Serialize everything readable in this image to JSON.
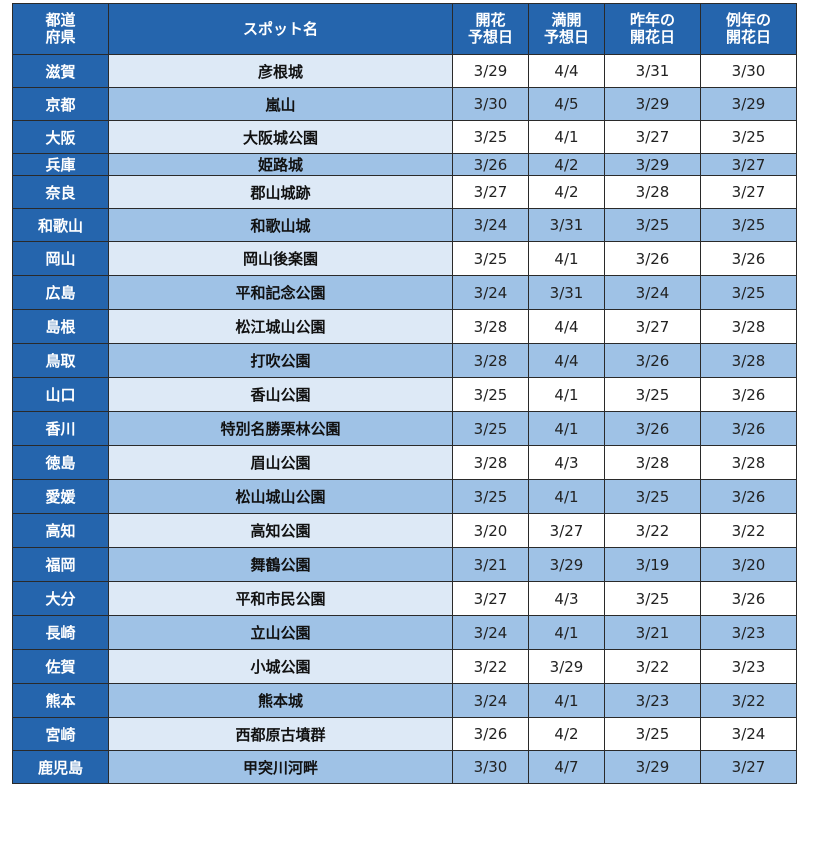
{
  "table": {
    "headers": {
      "prefecture": [
        "都道",
        "府県"
      ],
      "spot": "スポット名",
      "bloom_forecast": [
        "開花",
        "予想日"
      ],
      "full_bloom_forecast": [
        "満開",
        "予想日"
      ],
      "last_year_bloom": [
        "昨年の",
        "開花日"
      ],
      "normal_bloom": [
        "例年の",
        "開花日"
      ]
    },
    "rows": [
      {
        "pref": "滋賀",
        "spot": "彦根城",
        "bloom": "3/29",
        "full": "4/4",
        "last": "3/31",
        "normal": "3/30"
      },
      {
        "pref": "京都",
        "spot": "嵐山",
        "bloom": "3/30",
        "full": "4/5",
        "last": "3/29",
        "normal": "3/29"
      },
      {
        "pref": "大阪",
        "spot": "大阪城公園",
        "bloom": "3/25",
        "full": "4/1",
        "last": "3/27",
        "normal": "3/25"
      },
      {
        "pref": "兵庫",
        "spot": "姫路城",
        "bloom": "3/26",
        "full": "4/2",
        "last": "3/29",
        "normal": "3/27"
      },
      {
        "pref": "奈良",
        "spot": "郡山城跡",
        "bloom": "3/27",
        "full": "4/2",
        "last": "3/28",
        "normal": "3/27"
      },
      {
        "pref": "和歌山",
        "spot": "和歌山城",
        "bloom": "3/24",
        "full": "3/31",
        "last": "3/25",
        "normal": "3/25"
      },
      {
        "pref": "岡山",
        "spot": "岡山後楽園",
        "bloom": "3/25",
        "full": "4/1",
        "last": "3/26",
        "normal": "3/26"
      },
      {
        "pref": "広島",
        "spot": "平和記念公園",
        "bloom": "3/24",
        "full": "3/31",
        "last": "3/24",
        "normal": "3/25"
      },
      {
        "pref": "島根",
        "spot": "松江城山公園",
        "bloom": "3/28",
        "full": "4/4",
        "last": "3/27",
        "normal": "3/28"
      },
      {
        "pref": "鳥取",
        "spot": "打吹公園",
        "bloom": "3/28",
        "full": "4/4",
        "last": "3/26",
        "normal": "3/28"
      },
      {
        "pref": "山口",
        "spot": "香山公園",
        "bloom": "3/25",
        "full": "4/1",
        "last": "3/25",
        "normal": "3/26"
      },
      {
        "pref": "香川",
        "spot": "特別名勝栗林公園",
        "bloom": "3/25",
        "full": "4/1",
        "last": "3/26",
        "normal": "3/26"
      },
      {
        "pref": "徳島",
        "spot": "眉山公園",
        "bloom": "3/28",
        "full": "4/3",
        "last": "3/28",
        "normal": "3/28"
      },
      {
        "pref": "愛媛",
        "spot": "松山城山公園",
        "bloom": "3/25",
        "full": "4/1",
        "last": "3/25",
        "normal": "3/26"
      },
      {
        "pref": "高知",
        "spot": "高知公園",
        "bloom": "3/20",
        "full": "3/27",
        "last": "3/22",
        "normal": "3/22"
      },
      {
        "pref": "福岡",
        "spot": "舞鶴公園",
        "bloom": "3/21",
        "full": "3/29",
        "last": "3/19",
        "normal": "3/20"
      },
      {
        "pref": "大分",
        "spot": "平和市民公園",
        "bloom": "3/27",
        "full": "4/3",
        "last": "3/25",
        "normal": "3/26"
      },
      {
        "pref": "長崎",
        "spot": "立山公園",
        "bloom": "3/24",
        "full": "4/1",
        "last": "3/21",
        "normal": "3/23"
      },
      {
        "pref": "佐賀",
        "spot": "小城公園",
        "bloom": "3/22",
        "full": "3/29",
        "last": "3/22",
        "normal": "3/23"
      },
      {
        "pref": "熊本",
        "spot": "熊本城",
        "bloom": "3/24",
        "full": "4/1",
        "last": "3/23",
        "normal": "3/22"
      },
      {
        "pref": "宮崎",
        "spot": "西都原古墳群",
        "bloom": "3/26",
        "full": "4/2",
        "last": "3/25",
        "normal": "3/24"
      },
      {
        "pref": "鹿児島",
        "spot": "甲突川河畔",
        "bloom": "3/30",
        "full": "4/7",
        "last": "3/29",
        "normal": "3/27"
      }
    ]
  }
}
